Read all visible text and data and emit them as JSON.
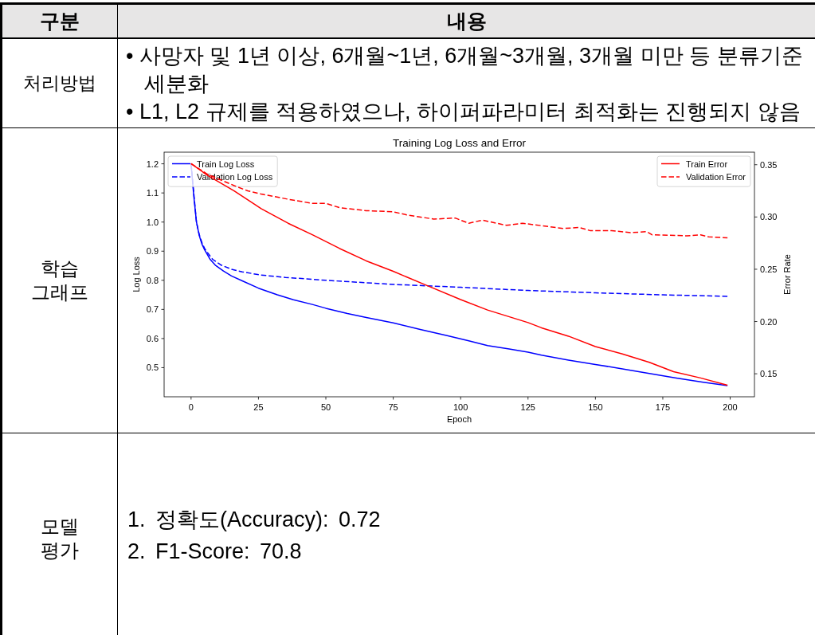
{
  "chart_data": {
    "type": "line",
    "title": "Training Log Loss and Error",
    "xlabel": "Epoch",
    "ylabel": "Log Loss",
    "y2label": "Error Rate",
    "xlim": [
      -10,
      209
    ],
    "xticks": [
      0,
      25,
      50,
      75,
      100,
      125,
      150,
      175,
      200
    ],
    "ylim": [
      0.4,
      1.24
    ],
    "yticks": [
      0.5,
      0.6,
      0.7,
      0.8,
      0.9,
      {
        "value": 1,
        "label": "1.0"
      },
      1.1,
      1.2
    ],
    "y2lim": [
      0.128,
      0.362
    ],
    "y2ticks": [
      0.15,
      {
        "value": 0.2,
        "label": "0.20"
      },
      0.25,
      {
        "value": 0.3,
        "label": "0.30"
      },
      0.35
    ],
    "legend": [
      "top left",
      "top right"
    ],
    "series": [
      {
        "name": "Train Log Loss",
        "color": "#0000ff",
        "line_style": "solid",
        "x": [
          0,
          1,
          2,
          3,
          4,
          5,
          7,
          9,
          12,
          15,
          19,
          25,
          32,
          38,
          45,
          50,
          58,
          65,
          75,
          85,
          95,
          103,
          110,
          118,
          125,
          130,
          140,
          150,
          160,
          170,
          180,
          190,
          199
        ],
        "values": [
          1.2,
          1.09,
          1.0,
          0.955,
          0.925,
          0.905,
          0.873,
          0.852,
          0.832,
          0.815,
          0.798,
          0.773,
          0.75,
          0.733,
          0.717,
          0.704,
          0.686,
          0.672,
          0.654,
          0.631,
          0.61,
          0.592,
          0.576,
          0.564,
          0.553,
          0.543,
          0.526,
          0.511,
          0.496,
          0.48,
          0.464,
          0.45,
          0.438
        ]
      },
      {
        "name": "Validation Log Loss",
        "color": "#0000ff",
        "line_style": "dashed",
        "x": [
          0,
          1,
          2,
          3,
          4,
          5,
          6,
          8,
          11,
          15,
          19,
          26,
          35,
          50,
          75,
          100,
          125,
          150,
          175,
          199
        ],
        "values": [
          1.2,
          1.1,
          1.0,
          0.958,
          0.93,
          0.91,
          0.896,
          0.872,
          0.853,
          0.838,
          0.829,
          0.818,
          0.81,
          0.8,
          0.786,
          0.776,
          0.765,
          0.757,
          0.75,
          0.745
        ]
      },
      {
        "name": "Train Error",
        "color": "#ff0000",
        "line_style": "solid",
        "axis": "y2",
        "x": [
          0,
          6,
          16,
          26,
          36,
          45,
          55,
          65,
          75,
          87,
          100,
          110,
          125,
          130,
          140,
          150,
          160,
          170,
          179,
          189,
          199
        ],
        "values": [
          0.351,
          0.34,
          0.325,
          0.308,
          0.294,
          0.283,
          0.27,
          0.258,
          0.248,
          0.235,
          0.221,
          0.211,
          0.199,
          0.194,
          0.186,
          0.176,
          0.169,
          0.161,
          0.152,
          0.146,
          0.139
        ]
      },
      {
        "name": "Validation Error",
        "color": "#ff0000",
        "line_style": "dashed",
        "axis": "y2",
        "x": [
          0,
          6,
          16,
          21,
          26,
          36,
          45,
          50,
          55,
          65,
          75,
          80,
          90,
          98,
          103,
          108,
          117,
          123,
          138,
          144,
          148,
          156,
          163,
          169,
          171,
          184,
          189,
          192,
          199
        ],
        "values": [
          0.351,
          0.341,
          0.33,
          0.325,
          0.322,
          0.317,
          0.313,
          0.313,
          0.309,
          0.306,
          0.305,
          0.302,
          0.298,
          0.299,
          0.294,
          0.297,
          0.292,
          0.294,
          0.289,
          0.29,
          0.287,
          0.287,
          0.285,
          0.286,
          0.283,
          0.282,
          0.283,
          0.281,
          0.28
        ]
      }
    ],
    "annotations": [
      "구분",
      "내용",
      "처리방법",
      "• 사망자 및 1년 이상, 6개월~1년, 6개월~3개월, 3개월 미만 등 분류기준\n세분화",
      "• L1, L2 규제를 적용하였으나, 하이퍼파라미터 최적화는 진행되지 않음",
      "학습\n그래프",
      "모델\n평가",
      "1. 정확도(Accuracy): 0.72",
      "2. F1-Score: 70.8"
    ]
  }
}
